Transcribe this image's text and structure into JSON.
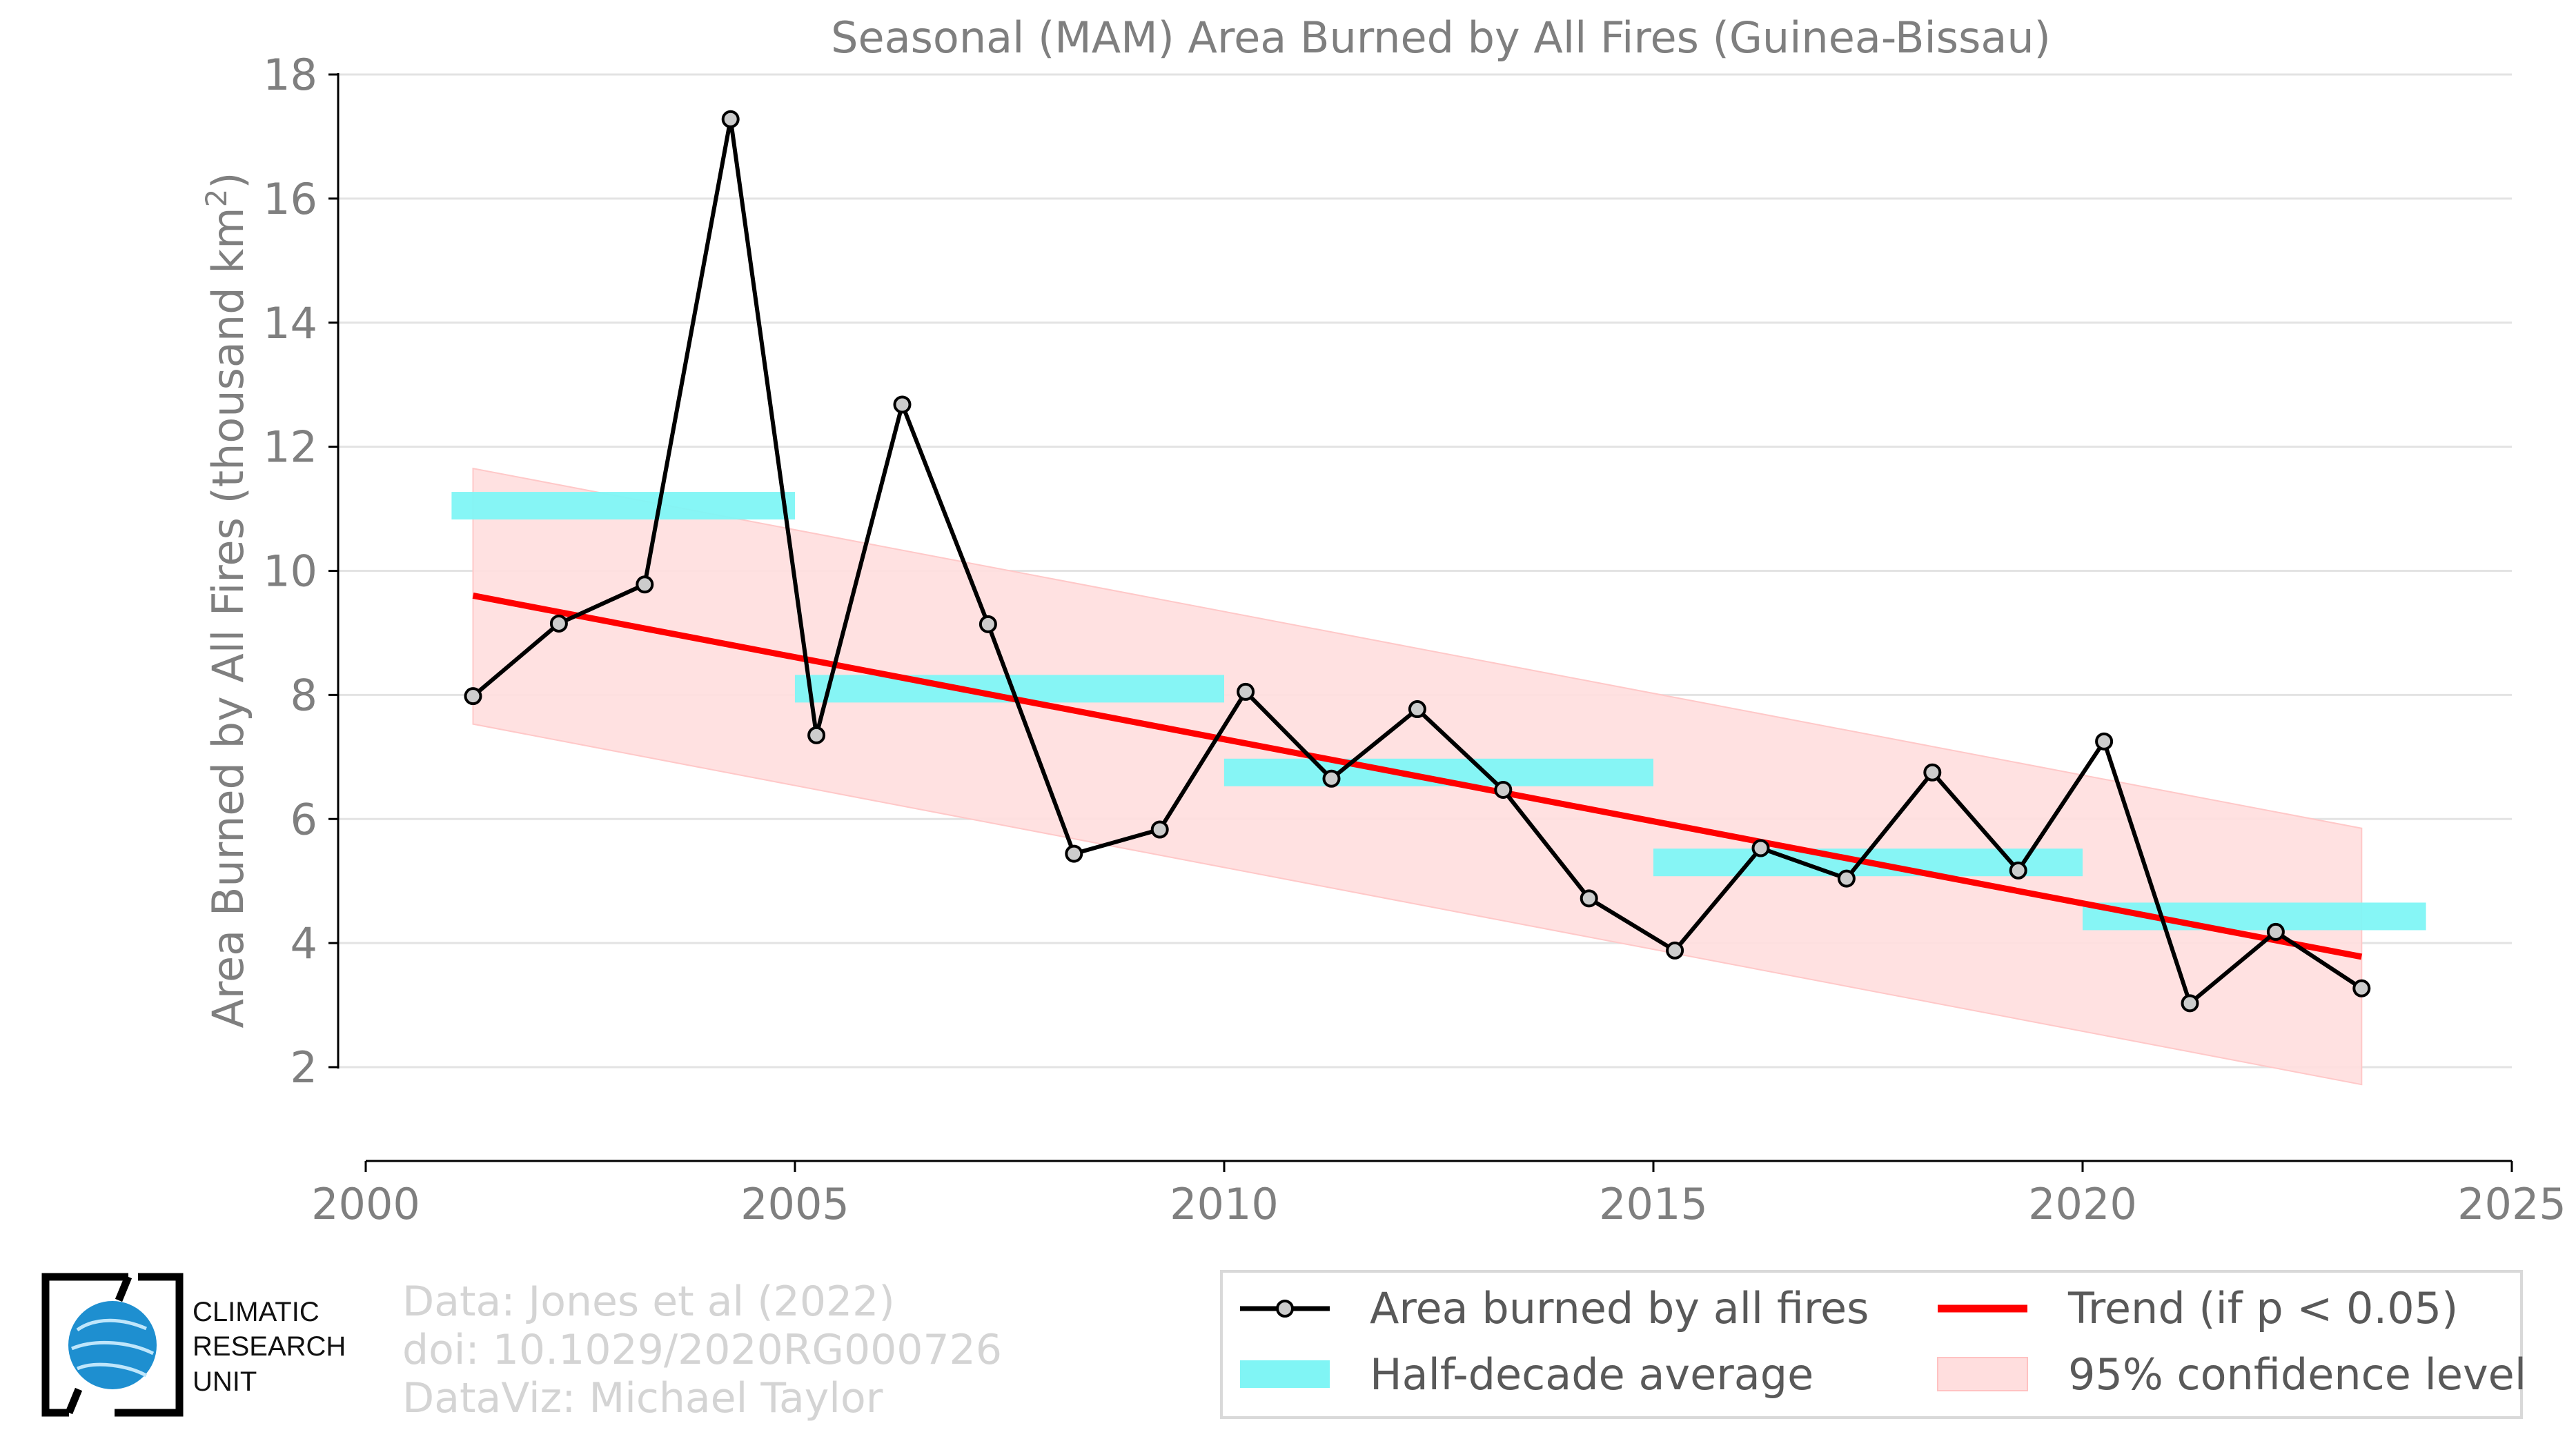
{
  "chart_data": {
    "type": "line",
    "title": "Seasonal (MAM) Area Burned by All Fires (Guinea-Bissau)",
    "xlabel": "",
    "ylabel_main": "Area Burned by All Fires (thousand km",
    "ylabel_sup": "2",
    "ylabel_close": ")",
    "xlim": [
      2000,
      2025
    ],
    "ylim": [
      0.5,
      18
    ],
    "xticks": [
      2000,
      2005,
      2010,
      2015,
      2020,
      2025
    ],
    "yticks": [
      2,
      4,
      6,
      8,
      10,
      12,
      14,
      16,
      18
    ],
    "grid": true,
    "legend_position": "bottom-right",
    "series": [
      {
        "name": "Area burned by all fires",
        "kind": "line-marker",
        "color": "#000000",
        "x": [
          2001.25,
          2002.25,
          2003.25,
          2004.25,
          2005.25,
          2006.25,
          2007.25,
          2008.25,
          2009.25,
          2010.25,
          2011.25,
          2012.25,
          2013.25,
          2014.25,
          2015.25,
          2016.25,
          2017.25,
          2018.25,
          2019.25,
          2020.25,
          2021.25,
          2022.25,
          2023.25
        ],
        "y": [
          7.98,
          9.15,
          9.78,
          17.28,
          7.35,
          12.68,
          9.14,
          5.44,
          5.83,
          8.05,
          6.65,
          7.77,
          6.47,
          4.72,
          3.88,
          5.53,
          5.04,
          6.75,
          5.17,
          7.25,
          3.03,
          4.18,
          3.27
        ]
      },
      {
        "name": "Half-decade average",
        "kind": "step",
        "color": "#80f5f5",
        "segments": [
          {
            "x0": 2001,
            "x1": 2005,
            "y": 11.05
          },
          {
            "x0": 2005,
            "x1": 2010,
            "y": 8.1
          },
          {
            "x0": 2010,
            "x1": 2015,
            "y": 6.75
          },
          {
            "x0": 2015,
            "x1": 2020,
            "y": 5.3
          },
          {
            "x0": 2020,
            "x1": 2024,
            "y": 4.43
          }
        ]
      },
      {
        "name": "Trend (if p < 0.05)",
        "kind": "line",
        "color": "#ff0000",
        "x": [
          2001.25,
          2023.25
        ],
        "y": [
          9.6,
          3.78
        ]
      },
      {
        "name": "95% confidence level",
        "kind": "band",
        "color": "#ffdede",
        "x": [
          2001.25,
          2023.25
        ],
        "upper": [
          11.65,
          5.85
        ],
        "lower": [
          7.53,
          1.72
        ]
      }
    ]
  },
  "credits": {
    "line1": "Data: Jones et al (2022)",
    "line2": "doi: 10.1029/2020RG000726",
    "line3": "DataViz: Michael Taylor"
  },
  "logo": {
    "line1": "CLIMATIC",
    "line2": "RESEARCH",
    "line3": "UNIT"
  }
}
